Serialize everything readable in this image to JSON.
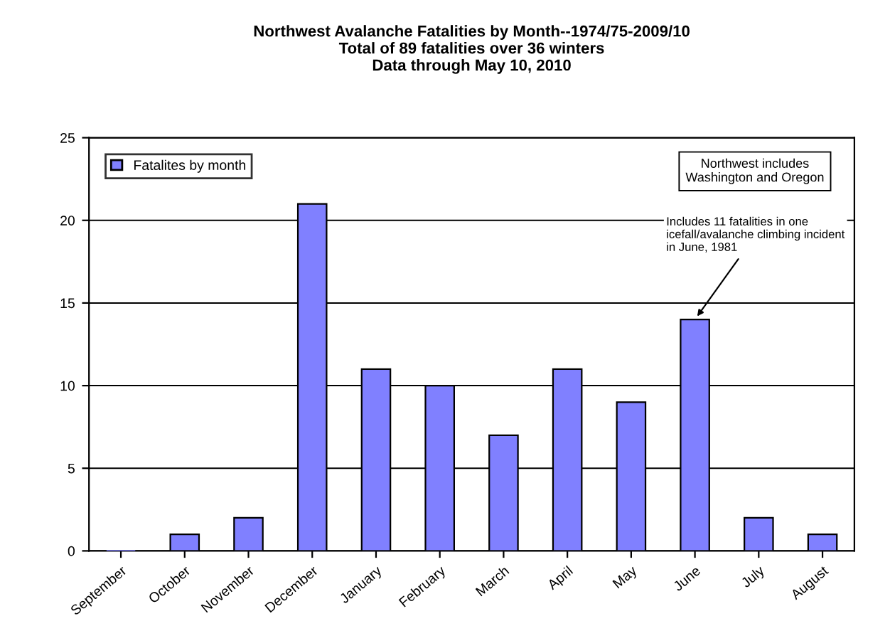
{
  "chart_data": {
    "type": "bar",
    "title": "Northwest Avalanche Fatalities by Month--1974/75-2009/10\nTotal of 89 fatalities over 36 winters\nData through May 10, 2010",
    "categories": [
      "September",
      "October",
      "November",
      "December",
      "January",
      "February",
      "March",
      "April",
      "May",
      "June",
      "July",
      "August"
    ],
    "series": [
      {
        "name": "Fatalites by month",
        "color": "#8080ff",
        "values": [
          0,
          1,
          2,
          21,
          11,
          10,
          7,
          11,
          9,
          14,
          2,
          1
        ]
      }
    ],
    "ylim": [
      0,
      25
    ],
    "yticks": [
      0,
      5,
      10,
      15,
      20,
      25
    ],
    "grid": "y",
    "legend": "top left",
    "annotations": [
      "Northwest includes\nWashington and Oregon",
      {
        "text": "Includes 11 fatalities in one\nicefall/avalanche climbing incident\nin June, 1981",
        "x": "June",
        "y": 14
      }
    ]
  }
}
